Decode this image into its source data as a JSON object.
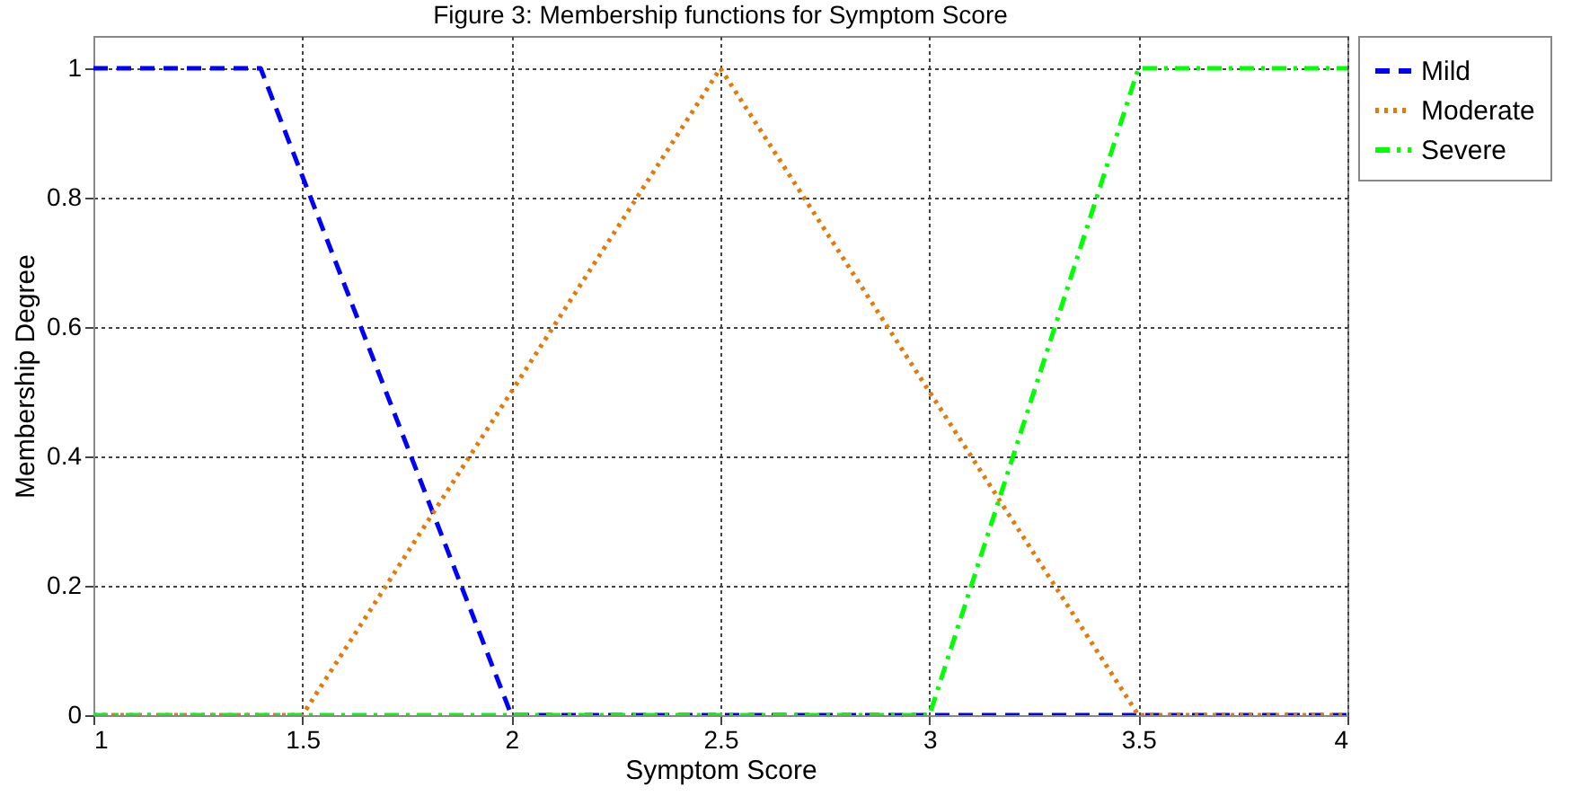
{
  "chart_data": {
    "type": "line",
    "title": "Figure 3: Membership functions for Symptom Score",
    "xlabel": "Symptom Score",
    "ylabel": "Membership Degree",
    "x": [
      1,
      1.4,
      1.5,
      2,
      2.5,
      3,
      3.5,
      4
    ],
    "series": [
      {
        "name": "Mild",
        "color": "#0000ff",
        "line_style": "dashed",
        "values": [
          1,
          1,
          0.833,
          0,
          0,
          0,
          0,
          0
        ]
      },
      {
        "name": "Moderate",
        "color": "#e07b0c",
        "line_style": "dotted",
        "values": [
          0,
          0,
          0,
          0.5,
          1,
          0.5,
          0,
          0
        ]
      },
      {
        "name": "Severe",
        "color": "#00ff00",
        "line_style": "dashdot",
        "values": [
          0,
          0,
          0,
          0,
          0,
          0,
          1,
          1
        ]
      }
    ],
    "xlim": [
      1,
      4
    ],
    "xticks": [
      1,
      1.5,
      2,
      2.5,
      3,
      3.5,
      4
    ],
    "ylim": [
      0,
      1.05
    ],
    "yticks": [
      0,
      0.2,
      0.4,
      0.6,
      0.8,
      1
    ],
    "grid": true,
    "legend": "right"
  }
}
